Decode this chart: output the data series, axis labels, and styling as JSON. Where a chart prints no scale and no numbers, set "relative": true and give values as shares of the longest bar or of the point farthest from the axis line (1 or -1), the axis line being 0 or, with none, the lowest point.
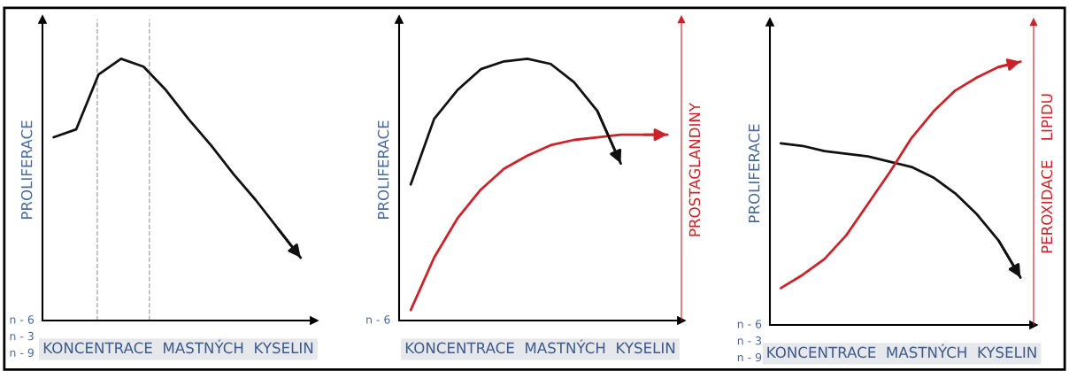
{
  "chart_data": [
    {
      "type": "line",
      "relative": true,
      "xlabel": "KONCENTRACE  MASTNÝCH  KYSELIN",
      "ylabel": "PROLIFERACE",
      "categories": [
        null,
        null,
        null,
        null,
        null,
        null,
        null,
        null,
        null,
        null,
        null,
        null
      ],
      "series": [
        {
          "color": "#111111",
          "values": [
            0.7,
            0.73,
            0.94,
            1.0,
            0.97,
            0.88,
            0.77,
            0.67,
            0.56,
            0.46,
            0.35,
            0.24
          ]
        }
      ],
      "annotations": [
        "n - 6",
        "n - 3",
        "n - 9"
      ]
    },
    {
      "type": "line",
      "relative": true,
      "xlabel": "KONCENTRACE  MASTNÝCH  KYSELIN",
      "ylabel": "PROLIFERACE",
      "y2label": "PROSTAGLANDINY",
      "categories": [
        null,
        null,
        null,
        null,
        null,
        null,
        null,
        null,
        null,
        null,
        null,
        null
      ],
      "series": [
        {
          "color": "#111111",
          "values": [
            0.52,
            0.77,
            0.88,
            0.96,
            0.99,
            1.0,
            0.98,
            0.91,
            0.8,
            0.6,
            null,
            null
          ]
        },
        {
          "color": "#cc2229",
          "values": [
            0.04,
            0.24,
            0.39,
            0.5,
            0.58,
            0.63,
            0.67,
            0.69,
            0.7,
            0.71,
            0.71,
            0.71
          ]
        }
      ],
      "annotations": [
        "n - 6"
      ]
    },
    {
      "type": "line",
      "relative": true,
      "xlabel": "KONCENTRACE  MASTNÝCH  KYSELIN",
      "ylabel": "PROLIFERACE",
      "y2label": "PEROXIDACE    LIPIDU",
      "categories": [
        null,
        null,
        null,
        null,
        null,
        null,
        null,
        null,
        null,
        null,
        null,
        null
      ],
      "series": [
        {
          "color": "#111111",
          "values": [
            0.69,
            0.68,
            0.66,
            0.65,
            0.64,
            0.62,
            0.6,
            0.56,
            0.5,
            0.42,
            0.32,
            0.18
          ]
        },
        {
          "color": "#cc2229",
          "values": [
            0.14,
            0.19,
            0.25,
            0.34,
            0.46,
            0.58,
            0.71,
            0.81,
            0.89,
            0.94,
            0.98,
            1.0
          ]
        }
      ],
      "annotations": [
        "n - 6",
        "n - 3",
        "n - 9"
      ]
    }
  ]
}
